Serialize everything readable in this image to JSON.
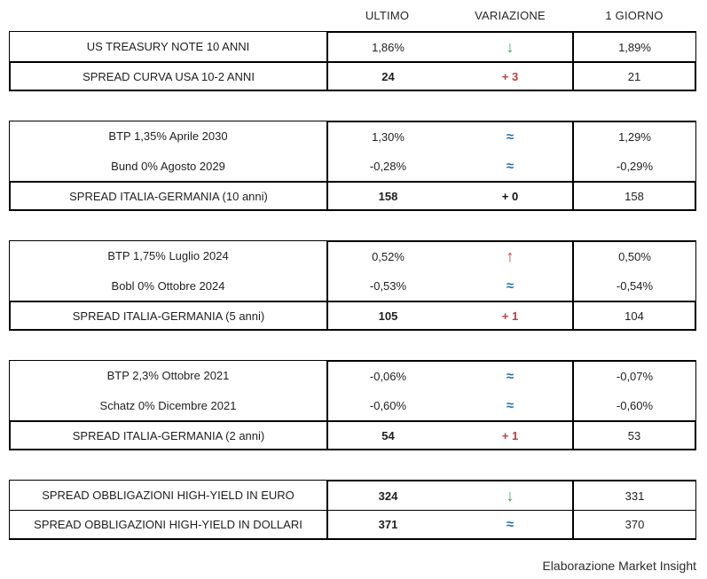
{
  "header": {
    "columns": [
      "ULTIMO",
      "VARIAZIONE",
      "1 GIORNO"
    ]
  },
  "colors": {
    "green": "#36a456",
    "red": "#c53b3b",
    "blue": "#2471ab",
    "border": "#000000"
  },
  "variation_symbols": {
    "down": "↓",
    "up": "↑",
    "flat": "≈"
  },
  "sections": [
    {
      "rows": [
        {
          "label": "US TREASURY NOTE 10 ANNI",
          "ultimo": "1,86%",
          "variation": {
            "kind": "down"
          },
          "giorno": "1,89%",
          "bold": false,
          "heavy": false
        },
        {
          "label": "SPREAD CURVA USA 10-2 ANNI",
          "ultimo": "24",
          "variation": {
            "kind": "delta",
            "text": "+ 3",
            "color": "red"
          },
          "giorno": "21",
          "bold": true,
          "heavy": true
        }
      ]
    },
    {
      "rows": [
        {
          "label": "BTP 1,35% Aprile 2030",
          "ultimo": "1,30%",
          "variation": {
            "kind": "flat"
          },
          "giorno": "1,29%",
          "bold": false,
          "heavy": false
        },
        {
          "label": "Bund 0% Agosto 2029",
          "ultimo": "-0,28%",
          "variation": {
            "kind": "flat"
          },
          "giorno": "-0,29%",
          "bold": false,
          "heavy": false
        },
        {
          "label": "SPREAD ITALIA-GERMANIA (10 anni)",
          "ultimo": "158",
          "variation": {
            "kind": "delta",
            "text": "+ 0",
            "color": "black"
          },
          "giorno": "158",
          "bold": true,
          "heavy": true
        }
      ]
    },
    {
      "rows": [
        {
          "label": "BTP 1,75% Luglio 2024",
          "ultimo": "0,52%",
          "variation": {
            "kind": "up"
          },
          "giorno": "0,50%",
          "bold": false,
          "heavy": false
        },
        {
          "label": "Bobl 0% Ottobre 2024",
          "ultimo": "-0,53%",
          "variation": {
            "kind": "flat"
          },
          "giorno": "-0,54%",
          "bold": false,
          "heavy": false
        },
        {
          "label": "SPREAD ITALIA-GERMANIA (5 anni)",
          "ultimo": "105",
          "variation": {
            "kind": "delta",
            "text": "+ 1",
            "color": "red"
          },
          "giorno": "104",
          "bold": true,
          "heavy": true
        }
      ]
    },
    {
      "rows": [
        {
          "label": "BTP 2,3% Ottobre 2021",
          "ultimo": "-0,06%",
          "variation": {
            "kind": "flat"
          },
          "giorno": "-0,07%",
          "bold": false,
          "heavy": false
        },
        {
          "label": "Schatz 0% Dicembre 2021",
          "ultimo": "-0,60%",
          "variation": {
            "kind": "flat"
          },
          "giorno": "-0,60%",
          "bold": false,
          "heavy": false
        },
        {
          "label": "SPREAD ITALIA-GERMANIA (2 anni)",
          "ultimo": "54",
          "variation": {
            "kind": "delta",
            "text": "+ 1",
            "color": "red"
          },
          "giorno": "53",
          "bold": true,
          "heavy": true
        }
      ]
    },
    {
      "row_dividers": true,
      "rows": [
        {
          "label": "SPREAD OBBLIGAZIONI HIGH-YIELD IN EURO",
          "ultimo": "324",
          "variation": {
            "kind": "down"
          },
          "giorno": "331",
          "bold": true,
          "heavy": false
        },
        {
          "label": "SPREAD OBBLIGAZIONI HIGH-YIELD IN DOLLARI",
          "ultimo": "371",
          "variation": {
            "kind": "flat"
          },
          "giorno": "370",
          "bold": true,
          "heavy": false
        }
      ]
    }
  ],
  "footer": {
    "credit": "Elaborazione Market Insight"
  }
}
